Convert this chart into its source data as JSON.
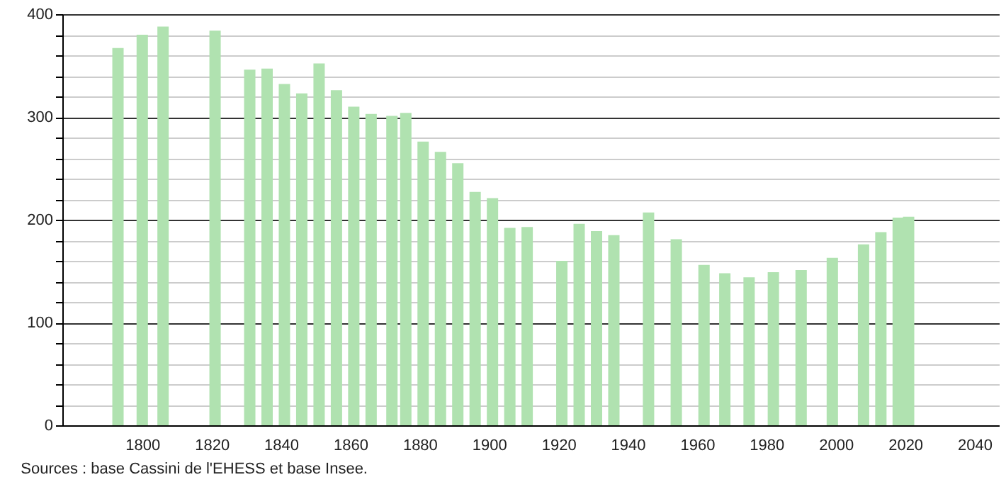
{
  "chart_data": {
    "type": "bar",
    "x": [
      1793,
      1800,
      1806,
      1821,
      1831,
      1836,
      1841,
      1846,
      1851,
      1856,
      1861,
      1866,
      1872,
      1876,
      1881,
      1886,
      1891,
      1896,
      1901,
      1906,
      1911,
      1921,
      1926,
      1931,
      1936,
      1946,
      1954,
      1962,
      1968,
      1975,
      1982,
      1990,
      1999,
      2008,
      2013,
      2018,
      2021
    ],
    "values": [
      367,
      380,
      388,
      384,
      346,
      347,
      332,
      323,
      352,
      326,
      310,
      303,
      301,
      304,
      276,
      266,
      255,
      227,
      221,
      192,
      193,
      160,
      196,
      189,
      185,
      207,
      181,
      156,
      148,
      144,
      149,
      151,
      163,
      176,
      188,
      202,
      203
    ],
    "color": "#b0e2b0",
    "xlim": [
      1779,
      2045
    ],
    "xticks": [
      1800,
      1820,
      1840,
      1860,
      1880,
      1900,
      1920,
      1940,
      1960,
      1980,
      2000,
      2020,
      2040
    ],
    "ylim": [
      0,
      400
    ],
    "yticks": [
      0,
      {
        "value": 20,
        "label": null
      },
      {
        "value": 40,
        "label": null
      },
      {
        "value": 60,
        "label": null
      },
      {
        "value": 80,
        "label": null
      },
      100,
      {
        "value": 120,
        "label": null
      },
      {
        "value": 140,
        "label": null
      },
      {
        "value": 160,
        "label": null
      },
      {
        "value": 180,
        "label": null
      },
      200,
      {
        "value": 220,
        "label": null
      },
      {
        "value": 240,
        "label": null
      },
      {
        "value": 260,
        "label": null
      },
      {
        "value": 280,
        "label": null
      },
      300,
      {
        "value": 320,
        "label": null
      },
      {
        "value": 340,
        "label": null
      },
      {
        "value": 360,
        "label": null
      },
      {
        "value": 380,
        "label": null
      },
      400
    ],
    "grid": "y",
    "annotations": [
      "Sources : base Cassini de l'EHESS et base Insee."
    ]
  }
}
